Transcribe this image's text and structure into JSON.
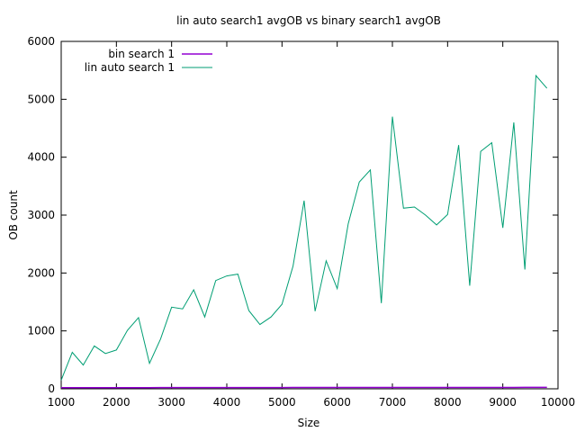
{
  "chart_data": {
    "type": "line",
    "title": "lin auto search1 avgOB vs binary search1 avgOB",
    "xlabel": "Size",
    "ylabel": "OB count",
    "xlim": [
      1000,
      10000
    ],
    "ylim": [
      0,
      6000
    ],
    "x_ticks": [
      "1000",
      "2000",
      "3000",
      "4000",
      "5000",
      "6000",
      "7000",
      "8000",
      "9000",
      "10000"
    ],
    "y_ticks": [
      "0",
      "1000",
      "2000",
      "3000",
      "4000",
      "5000",
      "6000"
    ],
    "x_tick_values": [
      1000,
      2000,
      3000,
      4000,
      5000,
      6000,
      7000,
      8000,
      9000,
      10000
    ],
    "y_tick_values": [
      0,
      1000,
      2000,
      3000,
      4000,
      5000,
      6000
    ],
    "grid": false,
    "legend_position": "top-left",
    "x": [
      1000,
      1200,
      1400,
      1600,
      1800,
      2000,
      2200,
      2400,
      2600,
      2800,
      3000,
      3200,
      3400,
      3600,
      3800,
      4000,
      4200,
      4400,
      4600,
      4800,
      5000,
      5200,
      5400,
      5600,
      5800,
      6000,
      6200,
      6400,
      6600,
      6800,
      7000,
      7200,
      7400,
      7600,
      7800,
      8000,
      8200,
      8400,
      8600,
      8800,
      9000,
      9200,
      9400,
      9600,
      9800
    ],
    "series": [
      {
        "name": "bin search 1",
        "color": "#9400d3",
        "values": [
          18,
          18,
          19,
          19,
          19,
          20,
          20,
          20,
          20,
          21,
          21,
          21,
          21,
          21,
          22,
          22,
          22,
          22,
          22,
          22,
          22,
          23,
          23,
          23,
          23,
          23,
          23,
          23,
          23,
          23,
          24,
          24,
          24,
          24,
          24,
          24,
          24,
          24,
          24,
          24,
          24,
          24,
          25,
          25,
          25
        ]
      },
      {
        "name": "lin auto search 1",
        "color": "#009e73",
        "values": [
          150,
          630,
          410,
          740,
          610,
          670,
          1010,
          1230,
          440,
          860,
          1410,
          1380,
          1710,
          1240,
          1870,
          1950,
          1980,
          1350,
          1110,
          1240,
          1460,
          2120,
          3250,
          1340,
          2210,
          1730,
          2850,
          3570,
          3780,
          1480,
          4700,
          3120,
          3140,
          3000,
          2830,
          3010,
          4210,
          1780,
          4100,
          4250,
          2780,
          4600,
          2060,
          5410,
          5190
        ]
      }
    ]
  }
}
